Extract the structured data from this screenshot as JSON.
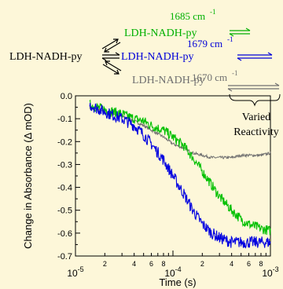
{
  "scheme": {
    "left_species": "LDH-NADH-py",
    "top": {
      "label": "LDH-NADH-py",
      "wavenumber": "1685 cm",
      "sup": "-1",
      "color": "#00b000"
    },
    "mid": {
      "label": "LDH-NADH-py",
      "wavenumber": "1679 cm",
      "sup": "-1",
      "color": "#0000d8"
    },
    "bot": {
      "label": "LDH-NADH-py",
      "wavenumber": "1670 cm",
      "sup": "-1",
      "color": "#707070"
    },
    "bracket_line1": "Varied",
    "bracket_line2": "Reactivity"
  },
  "chart_data": {
    "type": "line",
    "xscale": "log",
    "xlim": [
      1e-05,
      0.001
    ],
    "ylim": [
      -0.7,
      0.0
    ],
    "xlabel": "Time (s)",
    "ylabel": "Change in Absorbance (Δ mOD)",
    "yticks": [
      {
        "v": 0.0,
        "label": "0.0"
      },
      {
        "v": -0.1,
        "label": "-0.1"
      },
      {
        "v": -0.2,
        "label": "-0.2"
      },
      {
        "v": -0.3,
        "label": "-0.3"
      },
      {
        "v": -0.4,
        "label": "-0.4"
      },
      {
        "v": -0.5,
        "label": "-0.5"
      },
      {
        "v": -0.6,
        "label": "-0.6"
      },
      {
        "v": -0.7,
        "label": "-0.7"
      }
    ],
    "xticks_major": [
      {
        "v": 1e-05,
        "base": "10",
        "exp": "-5"
      },
      {
        "v": 0.0001,
        "base": "10",
        "exp": "-4"
      },
      {
        "v": 0.001,
        "base": "10",
        "exp": "-3"
      }
    ],
    "xticks_minor": [
      {
        "v": 2e-05,
        "label": "2"
      },
      {
        "v": 4e-05,
        "label": "4"
      },
      {
        "v": 6e-05,
        "label": "6"
      },
      {
        "v": 8e-05,
        "label": "8"
      },
      {
        "v": 0.0002,
        "label": "2"
      },
      {
        "v": 0.0004,
        "label": "4"
      },
      {
        "v": 0.0006,
        "label": "6"
      },
      {
        "v": 0.0008,
        "label": "8"
      }
    ],
    "series": [
      {
        "key": "green",
        "color": "#00c000",
        "x": [
          1.4e-05,
          2e-05,
          3e-05,
          4e-05,
          5e-05,
          6e-05,
          8e-05,
          0.0001,
          0.00013,
          0.00016,
          0.0002,
          0.00025,
          0.0003,
          0.0004,
          0.0005,
          0.0006,
          0.0008,
          0.001
        ],
        "y": [
          -0.04,
          -0.06,
          -0.08,
          -0.1,
          -0.11,
          -0.13,
          -0.15,
          -0.18,
          -0.22,
          -0.27,
          -0.33,
          -0.39,
          -0.44,
          -0.5,
          -0.54,
          -0.56,
          -0.58,
          -0.59
        ]
      },
      {
        "key": "blue",
        "color": "#0000e0",
        "x": [
          1.4e-05,
          2e-05,
          3e-05,
          4e-05,
          5e-05,
          6e-05,
          8e-05,
          0.0001,
          0.00013,
          0.00016,
          0.0002,
          0.00025,
          0.0003,
          0.0004,
          0.0005,
          0.0006,
          0.0008,
          0.001
        ],
        "y": [
          -0.04,
          -0.07,
          -0.1,
          -0.13,
          -0.17,
          -0.21,
          -0.28,
          -0.35,
          -0.43,
          -0.5,
          -0.56,
          -0.6,
          -0.62,
          -0.64,
          -0.64,
          -0.64,
          -0.64,
          -0.64
        ]
      },
      {
        "key": "gray",
        "color": "#707070",
        "x": [
          1.4e-05,
          2e-05,
          3e-05,
          4e-05,
          5e-05,
          6e-05,
          8e-05,
          0.0001,
          0.00013,
          0.00016,
          0.0002,
          0.00025,
          0.0003,
          0.0004,
          0.0005,
          0.0006,
          0.0008,
          0.001
        ],
        "y": [
          -0.05,
          -0.07,
          -0.09,
          -0.11,
          -0.13,
          -0.15,
          -0.18,
          -0.21,
          -0.23,
          -0.25,
          -0.26,
          -0.27,
          -0.27,
          -0.27,
          -0.26,
          -0.26,
          -0.26,
          -0.25
        ]
      }
    ]
  }
}
